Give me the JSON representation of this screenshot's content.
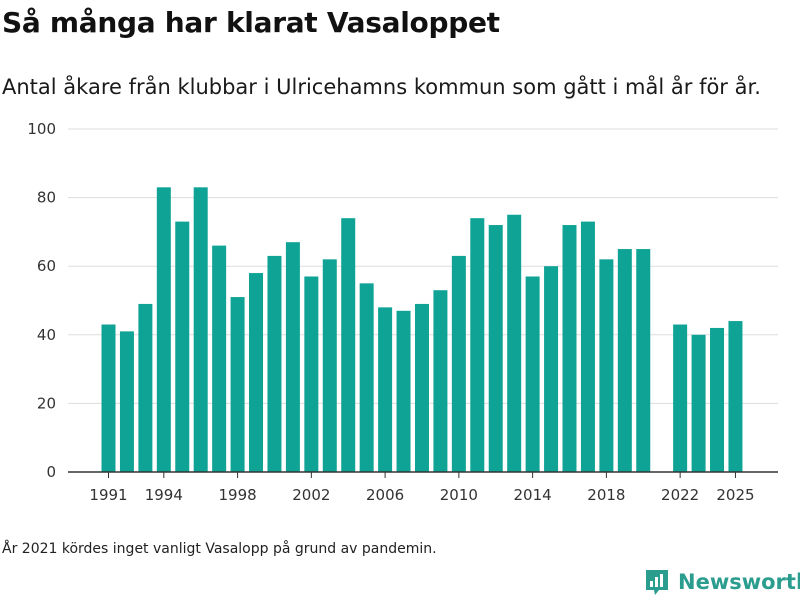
{
  "header": {
    "title": "Så många har klarat Vasaloppet",
    "subtitle": "Antal åkare från klubbar i Ulricehamns kommun som gått i mål år för år."
  },
  "footnote": "År 2021 kördes inget vanligt Vasalopp på grund av pandemin.",
  "brand": {
    "name": "Newsworthy",
    "icon": "newsworthy-logo-icon",
    "color": "#2a9d8f"
  },
  "chart_data": {
    "type": "bar",
    "title": "Så många har klarat Vasaloppet",
    "subtitle": "Antal åkare från klubbar i Ulricehamns kommun som gått i mål år för år.",
    "xlabel": "",
    "ylabel": "",
    "ylim": [
      0,
      100
    ],
    "yticks": [
      0,
      20,
      40,
      60,
      80,
      100
    ],
    "xticks": [
      1991,
      1994,
      1998,
      2002,
      2006,
      2010,
      2014,
      2018,
      2022,
      2025
    ],
    "grid": true,
    "bar_color": "#0fa396",
    "categories": [
      1991,
      1992,
      1993,
      1994,
      1995,
      1996,
      1997,
      1998,
      1999,
      2000,
      2001,
      2002,
      2003,
      2004,
      2005,
      2006,
      2007,
      2008,
      2009,
      2010,
      2011,
      2012,
      2013,
      2014,
      2015,
      2016,
      2017,
      2018,
      2019,
      2020,
      2021,
      2022,
      2023,
      2024,
      2025
    ],
    "values": [
      43,
      41,
      49,
      83,
      73,
      83,
      66,
      51,
      58,
      63,
      67,
      57,
      62,
      74,
      55,
      48,
      47,
      49,
      53,
      63,
      74,
      72,
      75,
      57,
      60,
      72,
      73,
      62,
      65,
      65,
      null,
      43,
      40,
      42,
      44
    ]
  }
}
